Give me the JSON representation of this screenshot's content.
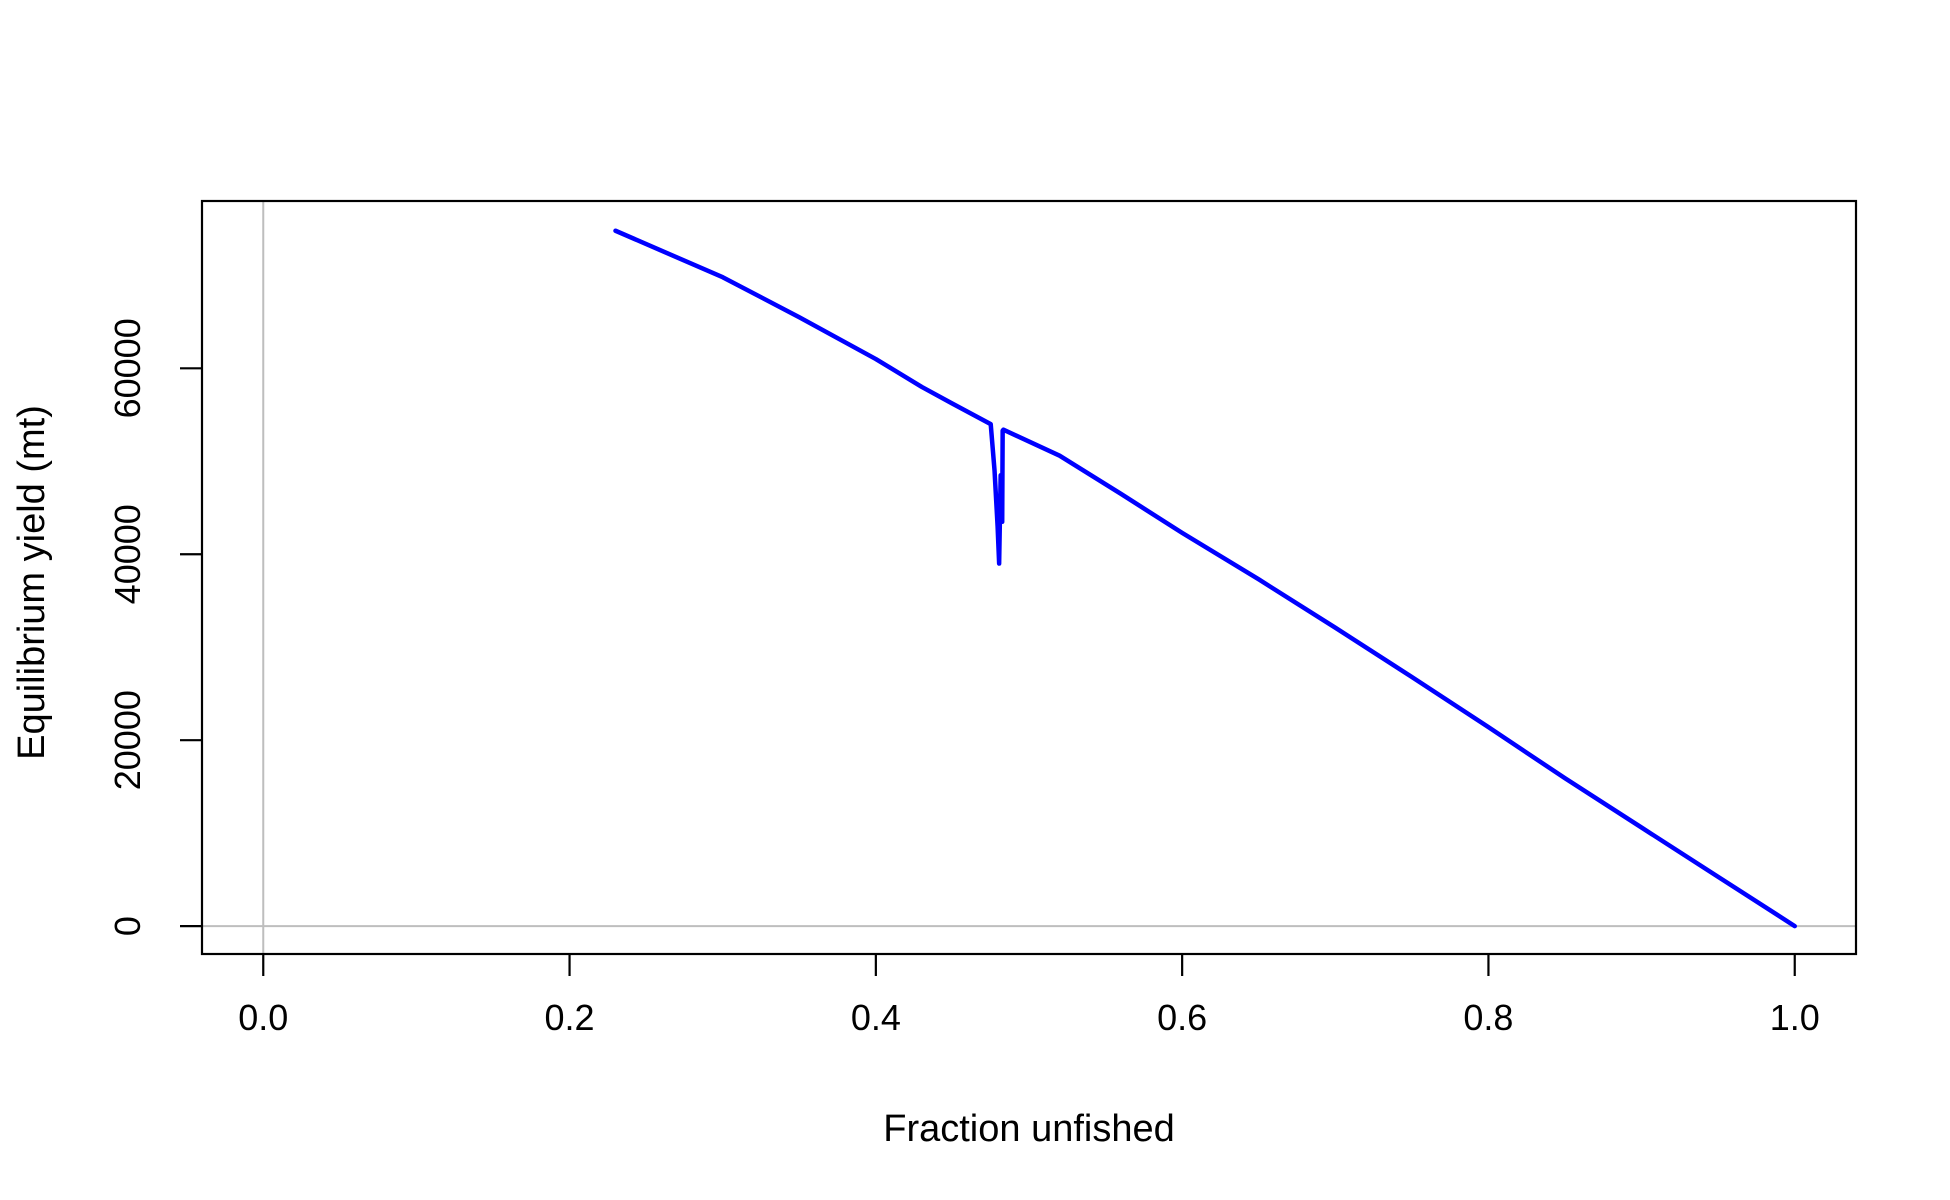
{
  "chart_data": {
    "type": "line",
    "title": "",
    "xlabel": "Fraction unfished",
    "ylabel": "Equilibrium yield (mt)",
    "xlim": [
      -0.04,
      1.04
    ],
    "ylim": [
      -3000,
      78000
    ],
    "x_ticks": [
      {
        "value": 0.0,
        "label": "0.0"
      },
      {
        "value": 0.2,
        "label": "0.2"
      },
      {
        "value": 0.4,
        "label": "0.4"
      },
      {
        "value": 0.6,
        "label": "0.6"
      },
      {
        "value": 0.8,
        "label": "0.8"
      },
      {
        "value": 1.0,
        "label": "1.0"
      }
    ],
    "y_ticks": [
      {
        "value": 0,
        "label": "0"
      },
      {
        "value": 20000,
        "label": "20000"
      },
      {
        "value": 40000,
        "label": "40000"
      },
      {
        "value": 60000,
        "label": "60000"
      }
    ],
    "reference_lines": {
      "x": 0,
      "y": 0,
      "color": "#bebebe"
    },
    "series": [
      {
        "color": "#0000ff",
        "x": [
          0.23,
          0.3,
          0.35,
          0.4,
          0.43,
          0.45,
          0.475,
          0.4775,
          0.4795,
          0.4805,
          0.4815,
          0.4825,
          0.4828,
          0.4833,
          0.52,
          0.56,
          0.6,
          0.65,
          0.7,
          0.75,
          0.8,
          0.85,
          0.9,
          0.95,
          1.0
        ],
        "y": [
          74800,
          69800,
          65500,
          61000,
          58000,
          56200,
          54000,
          49000,
          43000,
          39000,
          48500,
          43500,
          53300,
          53400,
          50600,
          46500,
          42300,
          37300,
          32100,
          26800,
          21400,
          15900,
          10600,
          5300,
          0
        ]
      }
    ]
  }
}
